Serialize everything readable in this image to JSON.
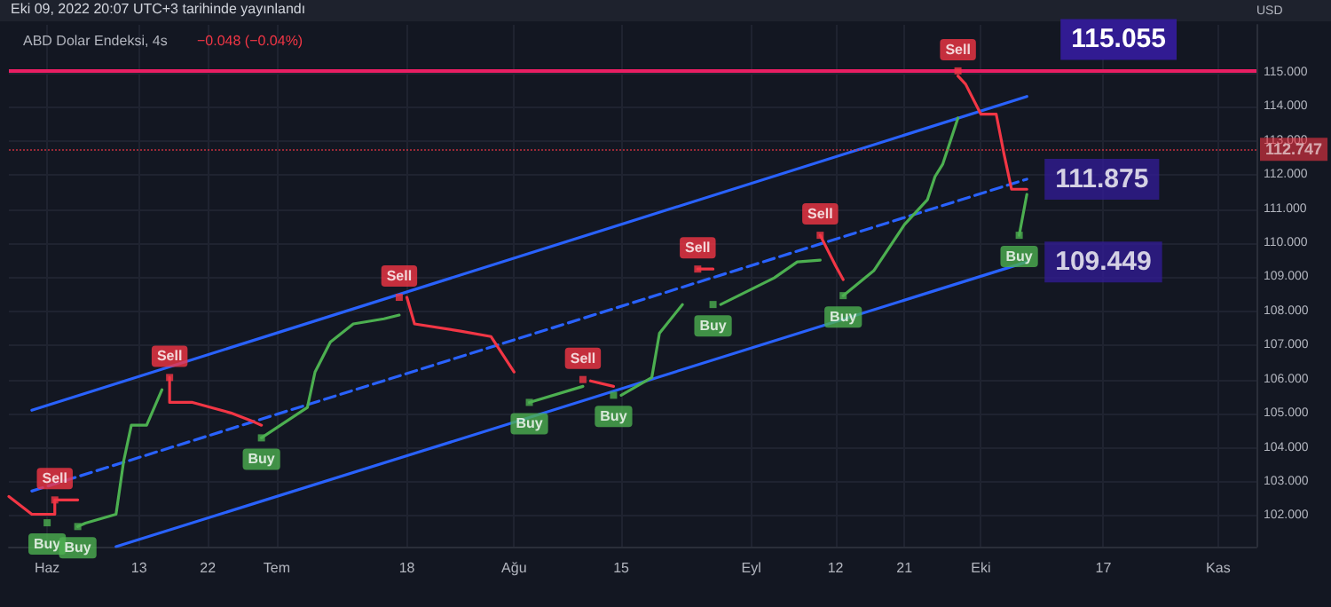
{
  "chart_data": {
    "type": "line",
    "title": "ABD Dolar Endeksi, 4s",
    "subtitle": "−0.048 (−0.04%)",
    "ylabel": "USD",
    "annotations": [
      "Eki 09, 2022 20:07 UTC+3 tarihinde yayınlandı",
      {
        "text": "111.875",
        "x": "2022-10-07",
        "y": 111.875
      },
      {
        "text": "109.449",
        "x": "2022-10-07",
        "y": 109.449
      }
    ],
    "xlim": [
      "2022-05-27",
      "2022-11-06"
    ],
    "xticks": [
      {
        "value": "2022-06-01",
        "label": "Haz"
      },
      {
        "value": "2022-06-13",
        "label": "13"
      },
      {
        "value": "2022-06-22",
        "label": "22"
      },
      {
        "value": "2022-07-01",
        "label": "Tem"
      },
      {
        "value": "2022-07-18",
        "label": "18"
      },
      {
        "value": "2022-08-01",
        "label": "Ağu"
      },
      {
        "value": "2022-08-15",
        "label": "15"
      },
      {
        "value": "2022-09-01",
        "label": "Eyl"
      },
      {
        "value": "2022-09-12",
        "label": "12"
      },
      {
        "value": "2022-09-21",
        "label": "21"
      },
      {
        "value": "2022-10-01",
        "label": "Eki"
      },
      {
        "value": "2022-10-17",
        "label": "17"
      },
      {
        "value": "2022-11-01",
        "label": "Kas"
      }
    ],
    "ylim": [
      101.1,
      116.4
    ],
    "yticks": [
      {
        "value": 102,
        "label": "102.000"
      },
      {
        "value": 103,
        "label": "103.000"
      },
      {
        "value": 104,
        "label": "104.000"
      },
      {
        "value": 105,
        "label": "105.000"
      },
      {
        "value": 106,
        "label": "106.000"
      },
      {
        "value": 107,
        "label": "107.000"
      },
      {
        "value": 108,
        "label": "108.000"
      },
      {
        "value": 109,
        "label": "109.000"
      },
      {
        "value": 110,
        "label": "110.000"
      },
      {
        "value": 111,
        "label": "111.000"
      },
      {
        "value": 112,
        "label": "112.000"
      },
      {
        "value": 113,
        "label": "113.000"
      },
      {
        "value": 114,
        "label": "114.000"
      },
      {
        "value": 115,
        "label": "115.000"
      }
    ],
    "grid": true,
    "line_style": "solid",
    "ref_lines": [
      {
        "axis": "y",
        "value": 115.055,
        "label": "115.055",
        "color": "#e91e63",
        "line_style": "solid"
      },
      {
        "axis": "y",
        "value": 112.747,
        "label": "112.747",
        "color": "#f23645",
        "line_style": "dotted"
      }
    ],
    "series": [
      {
        "color": "#2962ff",
        "x": [
          "2022-05-30",
          "2022-10-07"
        ],
        "values": [
          105.1,
          114.3
        ]
      },
      {
        "color": "#2962ff",
        "line_style": "dashed",
        "x": [
          "2022-05-30",
          "2022-10-07"
        ],
        "values": [
          102.73,
          111.875
        ]
      },
      {
        "color": "#2962ff",
        "x": [
          "2022-06-10",
          "2022-10-07"
        ],
        "values": [
          101.1,
          109.449
        ]
      },
      {
        "color": "#f23645",
        "x": [
          "2022-05-27",
          "2022-05-30",
          "2022-06-02",
          "2022-06-02",
          "2022-06-05",
          "2022-06-06",
          "2022-06-17",
          "2022-06-17",
          "2022-06-20",
          "2022-06-25",
          "2022-06-28",
          "2022-06-29",
          "2022-07-01",
          "2022-07-18",
          "2022-07-18",
          "2022-07-19",
          "2022-07-25",
          "2022-07-29",
          "2022-08-01",
          "2022-08-02",
          "2022-08-11",
          "2022-08-11",
          "2022-08-14",
          "2022-08-15",
          "2022-08-25",
          "2022-08-25",
          "2022-08-27",
          "2022-08-28",
          "2022-09-10",
          "2022-09-10",
          "2022-09-12",
          "2022-09-13",
          "2022-09-14",
          "2022-09-28",
          "2022-09-28",
          "2022-09-29",
          "2022-10-01",
          "2022-10-03",
          "2022-10-04",
          "2022-10-05",
          "2022-10-06",
          "2022-10-07"
        ],
        "values": [
          102.57,
          102.05,
          102.05,
          102.47,
          102.47,
          null,
          106.06,
          105.33,
          105.33,
          105.02,
          104.76,
          104.66,
          null,
          108.41,
          108.41,
          107.63,
          107.42,
          107.26,
          106.22,
          null,
          105.96,
          105.96,
          105.8,
          null,
          109.24,
          109.24,
          109.24,
          null,
          110.23,
          110.23,
          109.34,
          108.93,
          null,
          114.9,
          114.9,
          114.66,
          113.78,
          113.78,
          112.63,
          111.58,
          111.58,
          111.58
        ]
      },
      {
        "color": "#4caf50",
        "x": [
          "2022-06-05",
          "2022-06-06",
          "2022-06-10",
          "2022-06-11",
          "2022-06-12",
          "2022-06-14",
          "2022-06-16",
          "2022-06-17",
          "2022-06-29",
          "2022-07-05",
          "2022-07-06",
          "2022-07-08",
          "2022-07-11",
          "2022-07-15",
          "2022-07-17",
          "2022-07-18",
          "2022-08-03",
          "2022-08-10",
          "2022-08-11",
          "2022-08-15",
          "2022-08-19",
          "2022-08-20",
          "2022-08-23",
          "2022-08-24",
          "2022-08-28",
          "2022-09-04",
          "2022-09-07",
          "2022-09-10",
          "2022-09-11",
          "2022-09-13",
          "2022-09-17",
          "2022-09-21",
          "2022-09-24",
          "2022-09-25",
          "2022-09-26",
          "2022-09-28",
          "2022-09-29",
          "2022-10-06",
          "2022-10-07"
        ],
        "values": [
          101.69,
          101.79,
          102.05,
          103.61,
          104.66,
          104.66,
          105.7,
          null,
          104.29,
          105.18,
          106.22,
          107.1,
          107.63,
          107.78,
          107.89,
          null,
          105.33,
          105.8,
          null,
          105.54,
          106.06,
          107.36,
          108.2,
          null,
          108.2,
          108.98,
          109.45,
          109.5,
          null,
          108.46,
          109.19,
          110.54,
          111.27,
          111.95,
          112.31,
          113.67,
          null,
          110.23,
          111.43
        ]
      },
      {
        "type": "scatter",
        "color": "#f23645",
        "x": [
          "2022-06-02",
          "2022-06-17",
          "2022-07-17",
          "2022-08-10",
          "2022-08-25",
          "2022-09-10",
          "2022-09-28"
        ],
        "values": [
          102.47,
          106.06,
          108.41,
          106.0,
          109.24,
          110.23,
          115.05
        ],
        "value_labels": [
          "Sell",
          "Sell",
          "Sell",
          "Sell",
          "Sell",
          "Sell",
          "Sell"
        ]
      },
      {
        "type": "scatter",
        "color": "#4caf50",
        "x": [
          "2022-06-01",
          "2022-06-05",
          "2022-06-29",
          "2022-08-03",
          "2022-08-14",
          "2022-08-27",
          "2022-09-13",
          "2022-10-06"
        ],
        "values": [
          101.8,
          101.69,
          104.29,
          105.33,
          105.54,
          108.2,
          108.46,
          110.23
        ],
        "value_labels": [
          "Buy",
          "Buy",
          "Buy",
          "Buy",
          "Buy",
          "Buy",
          "Buy",
          "Buy"
        ]
      }
    ]
  }
}
